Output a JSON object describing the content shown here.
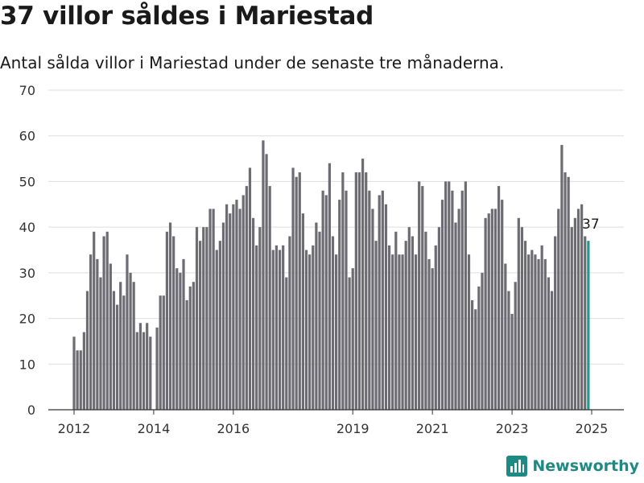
{
  "header": {
    "title": "37 villor såldes i Mariestad",
    "subtitle": "Antal sålda villor i Mariestad under de senaste tre månaderna."
  },
  "brand": {
    "name": "Newsworthy"
  },
  "colors": {
    "bar": "#6d6c72",
    "highlight": "#1d9b8f",
    "grid": "#dedede",
    "axis": "#333333",
    "brand": "#1d8a84"
  },
  "chart_data": {
    "type": "bar",
    "title": "37 villor såldes i Mariestad",
    "subtitle": "Antal sålda villor i Mariestad under de senaste tre månaderna.",
    "xlabel": "",
    "ylabel": "",
    "ylim": [
      0,
      70
    ],
    "yticks": [
      0,
      10,
      20,
      30,
      40,
      50,
      60,
      70
    ],
    "xticks": [
      "2012",
      "2014",
      "2016",
      "2019",
      "2021",
      "2023",
      "2025"
    ],
    "grid": true,
    "start": "2012-01",
    "end": "2025-02",
    "highlight_label": "37",
    "values": [
      16,
      13,
      13,
      17,
      26,
      34,
      39,
      33,
      29,
      38,
      39,
      32,
      26,
      23,
      28,
      25,
      34,
      30,
      28,
      17,
      19,
      17,
      19,
      16,
      0,
      18,
      25,
      25,
      39,
      41,
      38,
      31,
      30,
      33,
      24,
      27,
      28,
      40,
      37,
      40,
      40,
      44,
      44,
      35,
      37,
      41,
      45,
      43,
      45,
      46,
      44,
      47,
      49,
      53,
      42,
      36,
      40,
      59,
      56,
      49,
      35,
      36,
      35,
      36,
      29,
      38,
      53,
      51,
      52,
      43,
      35,
      34,
      36,
      41,
      39,
      48,
      47,
      54,
      38,
      34,
      46,
      52,
      48,
      29,
      31,
      52,
      52,
      55,
      52,
      48,
      44,
      37,
      47,
      48,
      45,
      36,
      34,
      39,
      34,
      34,
      37,
      40,
      38,
      34,
      50,
      49,
      39,
      33,
      31,
      36,
      40,
      46,
      50,
      50,
      48,
      41,
      44,
      48,
      50,
      34,
      24,
      22,
      27,
      30,
      42,
      43,
      44,
      44,
      49,
      46,
      32,
      26,
      21,
      28,
      42,
      40,
      37,
      34,
      35,
      34,
      33,
      36,
      33,
      29,
      26,
      38,
      44,
      58,
      52,
      51,
      40,
      42,
      44,
      45,
      38,
      37
    ]
  }
}
